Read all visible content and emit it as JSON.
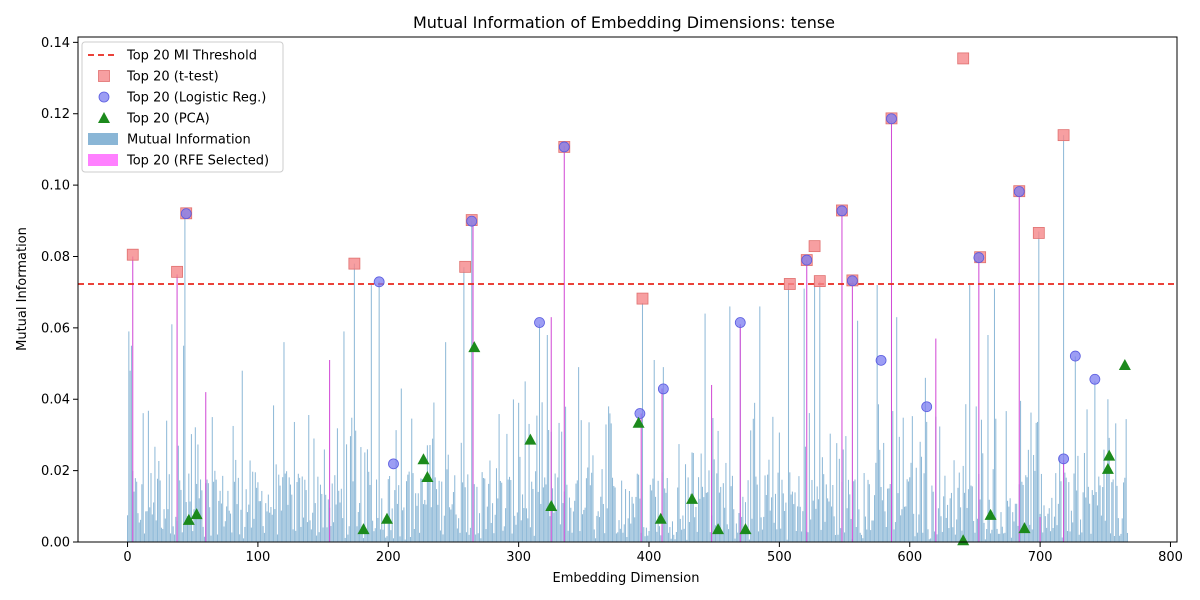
{
  "chart_data": {
    "type": "bar",
    "title": "Mutual Information of Embedding Dimensions: tense",
    "xlabel": "Embedding Dimension",
    "ylabel": "Mutual Information",
    "xlim": [
      -38,
      805
    ],
    "ylim": [
      0,
      0.1415
    ],
    "xticks": [
      0,
      100,
      200,
      300,
      400,
      500,
      600,
      700,
      800
    ],
    "yticks": [
      0.0,
      0.02,
      0.04,
      0.06,
      0.08,
      0.1,
      0.12,
      0.14
    ],
    "ytick_labels": [
      "0.00",
      "0.02",
      "0.04",
      "0.06",
      "0.08",
      "0.10",
      "0.12",
      "0.14"
    ],
    "grid": false,
    "legend_position": "top-left",
    "colors": {
      "mi_bars": "#8ab6d6",
      "rfe_bars": "#d24dd6",
      "threshold": "#e8281e",
      "ttest": "#f5878a",
      "logreg": "#7b7cf0",
      "pca": "#1c8a1c"
    },
    "threshold_value": 0.0723,
    "legend": [
      {
        "label": "Top 20 MI Threshold",
        "kind": "dashed-line",
        "color": "#e8281e"
      },
      {
        "label": "Top 20 (t-test)",
        "kind": "square",
        "color": "#f5878a"
      },
      {
        "label": "Top 20 (Logistic Reg.)",
        "kind": "circle",
        "color": "#7b7cf0"
      },
      {
        "label": "Top 20 (PCA)",
        "kind": "triangle",
        "color": "#1c8a1c"
      },
      {
        "label": "Mutual Information",
        "kind": "patch",
        "color": "#8ab6d6"
      },
      {
        "label": "Top 20 (RFE Selected)",
        "kind": "patch",
        "color": "#ff80ff"
      }
    ],
    "mi_series": {
      "name": "Mutual Information",
      "dims": 768,
      "peaks": [
        {
          "x": 1,
          "y": 0.059
        },
        {
          "x": 2,
          "y": 0.048
        },
        {
          "x": 3,
          "y": 0.055
        },
        {
          "x": 30,
          "y": 0.034
        },
        {
          "x": 34,
          "y": 0.061
        },
        {
          "x": 43,
          "y": 0.055
        },
        {
          "x": 44,
          "y": 0.092
        },
        {
          "x": 65,
          "y": 0.035
        },
        {
          "x": 88,
          "y": 0.048
        },
        {
          "x": 120,
          "y": 0.056
        },
        {
          "x": 143,
          "y": 0.029
        },
        {
          "x": 166,
          "y": 0.059
        },
        {
          "x": 174,
          "y": 0.078
        },
        {
          "x": 187,
          "y": 0.072
        },
        {
          "x": 193,
          "y": 0.073
        },
        {
          "x": 210,
          "y": 0.043
        },
        {
          "x": 244,
          "y": 0.056
        },
        {
          "x": 258,
          "y": 0.077
        },
        {
          "x": 264,
          "y": 0.09
        },
        {
          "x": 300,
          "y": 0.039
        },
        {
          "x": 305,
          "y": 0.045
        },
        {
          "x": 316,
          "y": 0.061
        },
        {
          "x": 322,
          "y": 0.058
        },
        {
          "x": 346,
          "y": 0.049
        },
        {
          "x": 369,
          "y": 0.038
        },
        {
          "x": 395,
          "y": 0.067
        },
        {
          "x": 404,
          "y": 0.051
        },
        {
          "x": 411,
          "y": 0.049
        },
        {
          "x": 443,
          "y": 0.064
        },
        {
          "x": 462,
          "y": 0.066
        },
        {
          "x": 470,
          "y": 0.061
        },
        {
          "x": 485,
          "y": 0.066
        },
        {
          "x": 507,
          "y": 0.072
        },
        {
          "x": 519,
          "y": 0.071
        },
        {
          "x": 527,
          "y": 0.074
        },
        {
          "x": 531,
          "y": 0.073
        },
        {
          "x": 560,
          "y": 0.062
        },
        {
          "x": 575,
          "y": 0.072
        },
        {
          "x": 590,
          "y": 0.063
        },
        {
          "x": 612,
          "y": 0.046
        },
        {
          "x": 646,
          "y": 0.072
        },
        {
          "x": 660,
          "y": 0.058
        },
        {
          "x": 665,
          "y": 0.071
        },
        {
          "x": 699,
          "y": 0.087
        },
        {
          "x": 718,
          "y": 0.114
        },
        {
          "x": 727,
          "y": 0.052
        },
        {
          "x": 742,
          "y": 0.045
        },
        {
          "x": 752,
          "y": 0.04
        },
        {
          "x": 765,
          "y": 0.018
        }
      ]
    },
    "rfe_series": {
      "name": "Top 20 (RFE Selected)",
      "bars": [
        {
          "x": 4,
          "y": 0.08
        },
        {
          "x": 38,
          "y": 0.075
        },
        {
          "x": 60,
          "y": 0.042
        },
        {
          "x": 155,
          "y": 0.051
        },
        {
          "x": 265,
          "y": 0.089
        },
        {
          "x": 325,
          "y": 0.063
        },
        {
          "x": 335,
          "y": 0.111
        },
        {
          "x": 394,
          "y": 0.036
        },
        {
          "x": 410,
          "y": 0.043
        },
        {
          "x": 448,
          "y": 0.044
        },
        {
          "x": 470,
          "y": 0.061
        },
        {
          "x": 521,
          "y": 0.079
        },
        {
          "x": 548,
          "y": 0.093
        },
        {
          "x": 556,
          "y": 0.073
        },
        {
          "x": 586,
          "y": 0.118
        },
        {
          "x": 620,
          "y": 0.057
        },
        {
          "x": 653,
          "y": 0.08
        },
        {
          "x": 684,
          "y": 0.098
        },
        {
          "x": 700,
          "y": 0.007
        },
        {
          "x": 718,
          "y": 0.023
        }
      ]
    },
    "ttest_points": [
      {
        "x": 4,
        "y": 0.0805
      },
      {
        "x": 38,
        "y": 0.0757
      },
      {
        "x": 45,
        "y": 0.0921
      },
      {
        "x": 174,
        "y": 0.078
      },
      {
        "x": 259,
        "y": 0.0771
      },
      {
        "x": 264,
        "y": 0.0902
      },
      {
        "x": 335,
        "y": 0.1107
      },
      {
        "x": 395,
        "y": 0.0682
      },
      {
        "x": 508,
        "y": 0.0723
      },
      {
        "x": 527,
        "y": 0.0829
      },
      {
        "x": 531,
        "y": 0.0731
      },
      {
        "x": 548,
        "y": 0.0929
      },
      {
        "x": 556,
        "y": 0.0733
      },
      {
        "x": 586,
        "y": 0.1187
      },
      {
        "x": 641,
        "y": 0.1355
      },
      {
        "x": 654,
        "y": 0.0798
      },
      {
        "x": 684,
        "y": 0.0983
      },
      {
        "x": 699,
        "y": 0.0866
      },
      {
        "x": 718,
        "y": 0.114
      },
      {
        "x": 521,
        "y": 0.079
      }
    ],
    "logreg_points": [
      {
        "x": 45,
        "y": 0.092
      },
      {
        "x": 193,
        "y": 0.0729
      },
      {
        "x": 204,
        "y": 0.0219
      },
      {
        "x": 264,
        "y": 0.0899
      },
      {
        "x": 316,
        "y": 0.0615
      },
      {
        "x": 335,
        "y": 0.1107
      },
      {
        "x": 393,
        "y": 0.036
      },
      {
        "x": 411,
        "y": 0.0429
      },
      {
        "x": 470,
        "y": 0.0615
      },
      {
        "x": 521,
        "y": 0.079
      },
      {
        "x": 548,
        "y": 0.0928
      },
      {
        "x": 556,
        "y": 0.0732
      },
      {
        "x": 578,
        "y": 0.0509
      },
      {
        "x": 586,
        "y": 0.1186
      },
      {
        "x": 613,
        "y": 0.0379
      },
      {
        "x": 653,
        "y": 0.0797
      },
      {
        "x": 684,
        "y": 0.0982
      },
      {
        "x": 718,
        "y": 0.0233
      },
      {
        "x": 727,
        "y": 0.0521
      },
      {
        "x": 742,
        "y": 0.0456
      }
    ],
    "pca_points": [
      {
        "x": 47,
        "y": 0.0062
      },
      {
        "x": 53,
        "y": 0.0078
      },
      {
        "x": 181,
        "y": 0.0036
      },
      {
        "x": 199,
        "y": 0.0065
      },
      {
        "x": 227,
        "y": 0.0232
      },
      {
        "x": 230,
        "y": 0.0182
      },
      {
        "x": 266,
        "y": 0.0546
      },
      {
        "x": 309,
        "y": 0.0287
      },
      {
        "x": 325,
        "y": 0.0101
      },
      {
        "x": 392,
        "y": 0.0334
      },
      {
        "x": 409,
        "y": 0.0065
      },
      {
        "x": 433,
        "y": 0.0121
      },
      {
        "x": 453,
        "y": 0.0036
      },
      {
        "x": 474,
        "y": 0.0036
      },
      {
        "x": 641,
        "y": 0.0005
      },
      {
        "x": 662,
        "y": 0.0076
      },
      {
        "x": 688,
        "y": 0.0039
      },
      {
        "x": 752,
        "y": 0.0205
      },
      {
        "x": 753,
        "y": 0.0242
      },
      {
        "x": 765,
        "y": 0.0496
      }
    ]
  }
}
